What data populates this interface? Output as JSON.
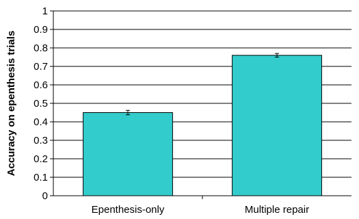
{
  "chart_data": {
    "type": "bar",
    "categories": [
      "Epenthesis-only",
      "Multiple repair"
    ],
    "values": [
      0.45,
      0.76
    ],
    "errors": [
      0.012,
      0.01
    ],
    "title": "",
    "xlabel": "",
    "ylabel": "Accuracy on epenthesis trials",
    "ylim": [
      0,
      1
    ],
    "yticks": [
      0,
      0.1,
      0.2,
      0.3,
      0.4,
      0.5,
      0.6,
      0.7,
      0.8,
      0.9,
      1
    ],
    "ytick_labels": [
      "0",
      "0.1",
      "0.2",
      "0.3",
      "0.4",
      "0.5",
      "0.6",
      "0.7",
      "0.8",
      "0.9",
      "1"
    ],
    "grid": true,
    "legend": "none",
    "bar_color": "#33CCCC",
    "bar_edge_color": "#000000",
    "gridline_color": "#000000"
  }
}
